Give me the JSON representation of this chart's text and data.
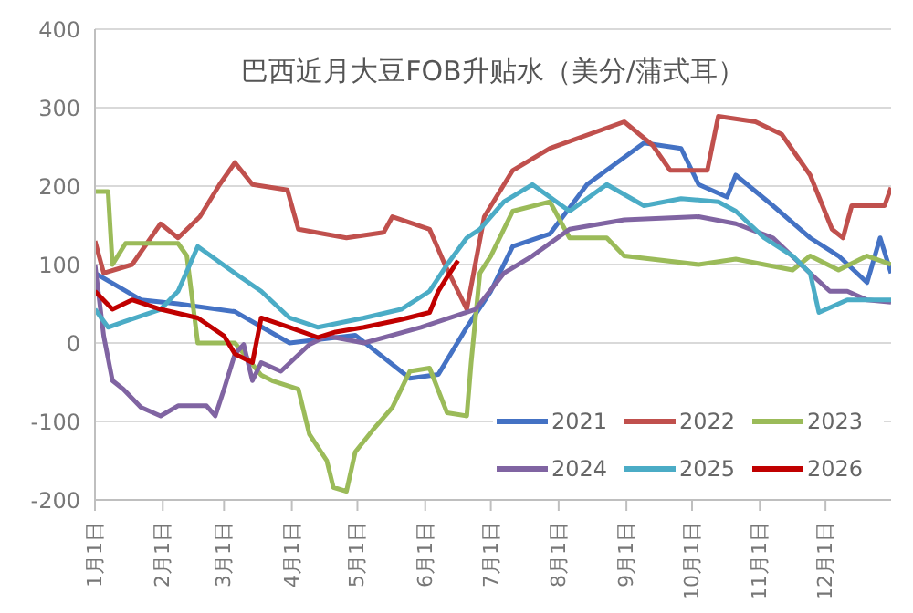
{
  "chart_data": {
    "type": "line",
    "title": "巴西近月大豆FOB升贴水（美分/蒲式耳）",
    "xlim": [
      "--01-01",
      "--12-31"
    ],
    "xticks": [
      {
        "value": "--01-01",
        "label": "1月1日"
      },
      {
        "value": "--02-01",
        "label": "2月1日"
      },
      {
        "value": "--03-01",
        "label": "3月1日"
      },
      {
        "value": "--04-01",
        "label": "4月1日"
      },
      {
        "value": "--05-01",
        "label": "5月1日"
      },
      {
        "value": "--06-01",
        "label": "6月1日"
      },
      {
        "value": "--07-01",
        "label": "7月1日"
      },
      {
        "value": "--08-01",
        "label": "8月1日"
      },
      {
        "value": "--09-01",
        "label": "9月1日"
      },
      {
        "value": "--10-01",
        "label": "10月1日"
      },
      {
        "value": "--11-01",
        "label": "11月1日"
      },
      {
        "value": "--12-01",
        "label": "12月1日"
      }
    ],
    "ylim": [
      -200,
      400
    ],
    "yticks": [
      -200,
      -100,
      0,
      100,
      200,
      300,
      400
    ],
    "grid": "y",
    "legend": "bottom right",
    "marker": "none",
    "line_style": "solid",
    "series": [
      {
        "name": "2021",
        "color": "#4472c4",
        "x": [
          "--01-01",
          "--01-22",
          "--02-08",
          "--03-06",
          "--03-31",
          "--04-30",
          "--05-25",
          "--06-07",
          "--06-20",
          "--07-01",
          "--07-11",
          "--07-28",
          "--08-14",
          "--09-09",
          "--09-26",
          "--10-04",
          "--10-17",
          "--10-21",
          "--11-07",
          "--11-24",
          "--12-07",
          "--12-20",
          "--12-26",
          "--12-31"
        ],
        "values": [
          89,
          55,
          50,
          40,
          0,
          10,
          -45,
          -40,
          20,
          66,
          123,
          139,
          202,
          255,
          248,
          202,
          186,
          214,
          175,
          134,
          111,
          77,
          134,
          89
        ]
      },
      {
        "name": "2022",
        "color": "#c0504d",
        "x": [
          "--01-01",
          "--01-05",
          "--01-18",
          "--01-31",
          "--02-08",
          "--02-18",
          "--02-27",
          "--03-06",
          "--03-14",
          "--03-30",
          "--04-04",
          "--04-26",
          "--05-13",
          "--05-17",
          "--06-03",
          "--06-10",
          "--06-20",
          "--06-28",
          "--07-11",
          "--07-28",
          "--08-31",
          "--09-13",
          "--09-21",
          "--10-08",
          "--10-13",
          "--10-30",
          "--11-11",
          "--11-24",
          "--12-04",
          "--12-09",
          "--12-13",
          "--12-28",
          "--12-31"
        ],
        "values": [
          130,
          89,
          100,
          152,
          134,
          161,
          202,
          230,
          202,
          195,
          145,
          134,
          141,
          161,
          145,
          100,
          43,
          161,
          220,
          248,
          282,
          252,
          220,
          220,
          289,
          282,
          266,
          214,
          145,
          134,
          175,
          175,
          198
        ]
      },
      {
        "name": "2023",
        "color": "#9bbb59",
        "x": [
          "--01-01",
          "--01-07",
          "--01-09",
          "--01-15",
          "--02-08",
          "--02-12",
          "--02-17",
          "--03-06",
          "--03-18",
          "--03-23",
          "--04-04",
          "--04-09",
          "--04-17",
          "--04-20",
          "--04-26",
          "--04-30",
          "--05-08",
          "--05-17",
          "--05-25",
          "--06-03",
          "--06-11",
          "--06-20",
          "--06-22",
          "--06-26",
          "--07-01",
          "--07-11",
          "--07-28",
          "--08-06",
          "--08-23",
          "--08-31",
          "--10-04",
          "--10-21",
          "--11-16",
          "--11-24",
          "--12-07",
          "--12-20",
          "--12-31"
        ],
        "values": [
          193,
          193,
          100,
          127,
          127,
          111,
          0,
          0,
          -41,
          -48,
          -59,
          -116,
          -150,
          -184,
          -189,
          -139,
          -111,
          -82,
          -36,
          -32,
          -89,
          -93,
          -25,
          89,
          111,
          168,
          180,
          134,
          134,
          111,
          100,
          107,
          93,
          111,
          93,
          111,
          100
        ]
      },
      {
        "name": "2024",
        "color": "#8064a2",
        "x": [
          "--01-01",
          "--01-05",
          "--01-09",
          "--01-14",
          "--01-22",
          "--01-31",
          "--02-08",
          "--02-21",
          "--02-25",
          "--03-01",
          "--03-06",
          "--03-10",
          "--03-14",
          "--03-18",
          "--03-27",
          "--04-09",
          "--04-17",
          "--05-04",
          "--05-30",
          "--06-24",
          "--07-07",
          "--07-20",
          "--08-06",
          "--08-31",
          "--10-04",
          "--10-21",
          "--11-07",
          "--11-24",
          "--12-03",
          "--12-11",
          "--12-20",
          "--12-31"
        ],
        "values": [
          100,
          9,
          -48,
          -59,
          -82,
          -93,
          -80,
          -80,
          -93,
          -59,
          -14,
          -2,
          -48,
          -25,
          -36,
          -2,
          9,
          0,
          20,
          43,
          89,
          111,
          145,
          157,
          161,
          152,
          134,
          89,
          66,
          66,
          55,
          52
        ]
      },
      {
        "name": "2025",
        "color": "#4bacc6",
        "x": [
          "--01-01",
          "--01-07",
          "--01-14",
          "--01-31",
          "--02-08",
          "--02-17",
          "--03-06",
          "--03-18",
          "--03-31",
          "--04-13",
          "--05-04",
          "--05-21",
          "--06-03",
          "--06-11",
          "--06-20",
          "--06-26",
          "--07-07",
          "--07-20",
          "--08-06",
          "--08-23",
          "--09-09",
          "--09-26",
          "--10-13",
          "--10-21",
          "--11-03",
          "--11-16",
          "--11-24",
          "--11-28",
          "--12-11",
          "--12-31"
        ],
        "values": [
          43,
          20,
          27,
          43,
          66,
          123,
          89,
          66,
          32,
          20,
          32,
          43,
          66,
          100,
          134,
          145,
          180,
          202,
          168,
          202,
          175,
          184,
          180,
          168,
          134,
          111,
          89,
          39,
          55,
          55
        ]
      },
      {
        "name": "2026",
        "color": "#c00000",
        "x": [
          "--01-01",
          "--01-09",
          "--01-18",
          "--01-31",
          "--02-17",
          "--03-01",
          "--03-06",
          "--03-14",
          "--03-18",
          "--03-31",
          "--04-13",
          "--04-21",
          "--05-04",
          "--05-21",
          "--06-03",
          "--06-07",
          "--06-11",
          "--06-16"
        ],
        "values": [
          66,
          43,
          55,
          43,
          32,
          9,
          -14,
          -25,
          32,
          20,
          7,
          14,
          20,
          30,
          39,
          66,
          84,
          105
        ]
      }
    ]
  }
}
